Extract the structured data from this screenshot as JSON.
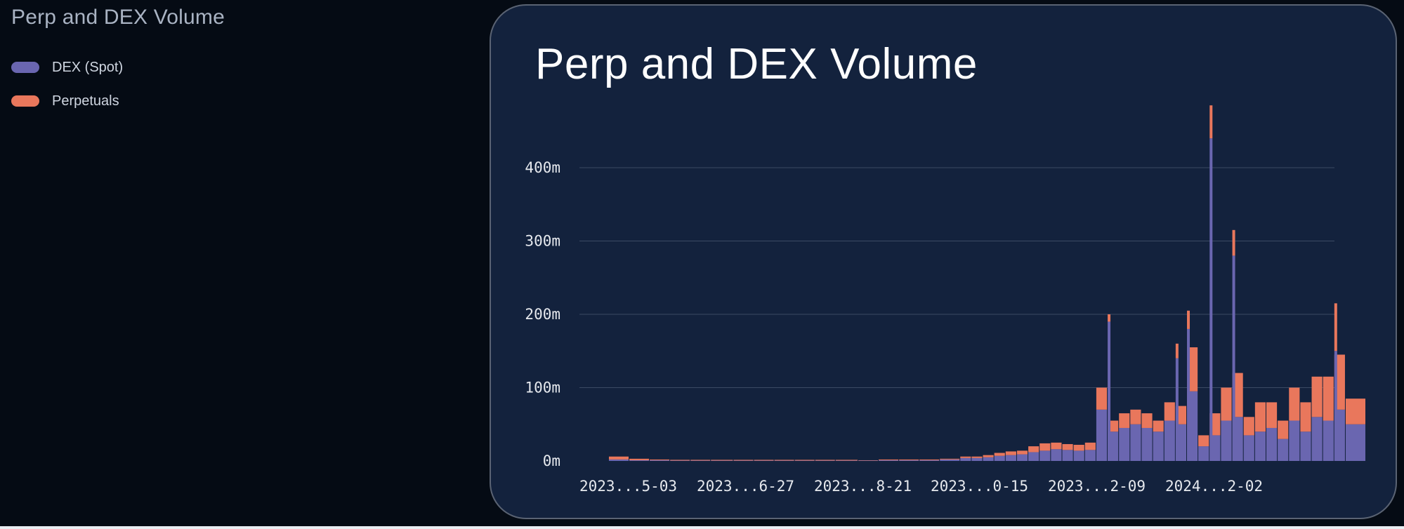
{
  "page": {
    "title": "Perp and DEX Volume"
  },
  "legend": {
    "items": [
      {
        "label": "DEX (Spot)",
        "color": "#6a66b0"
      },
      {
        "label": "Perpetuals",
        "color": "#e9775c"
      }
    ]
  },
  "chart_data": {
    "type": "bar",
    "stacked": true,
    "title": "Perp and DEX Volume",
    "xlabel": "",
    "ylabel": "",
    "ylim": [
      0,
      400000000
    ],
    "y_ticks": [
      {
        "value": 0,
        "label": "0m"
      },
      {
        "value": 100000000,
        "label": "100m"
      },
      {
        "value": 200000000,
        "label": "200m"
      },
      {
        "value": 300000000,
        "label": "300m"
      },
      {
        "value": 400000000,
        "label": "400m"
      }
    ],
    "x_tick_labels": [
      "2023...5-03",
      "2023...6-27",
      "2023...8-21",
      "2023...0-15",
      "2023...2-09",
      "2024...2-02"
    ],
    "grid": true,
    "legend_position": "outside-left",
    "colors": {
      "DEX (Spot)": "#6a66b0",
      "Perpetuals": "#e9775c"
    },
    "x": [
      "2023-05-03",
      "2023-05-12",
      "2023-05-21",
      "2023-05-30",
      "2023-06-08",
      "2023-06-17",
      "2023-06-27",
      "2023-07-06",
      "2023-07-15",
      "2023-07-24",
      "2023-08-02",
      "2023-08-11",
      "2023-08-21",
      "2023-08-30",
      "2023-09-08",
      "2023-09-17",
      "2023-09-26",
      "2023-10-05",
      "2023-10-10",
      "2023-10-15",
      "2023-10-20",
      "2023-10-25",
      "2023-10-30",
      "2023-11-04",
      "2023-11-09",
      "2023-11-14",
      "2023-11-19",
      "2023-11-24",
      "2023-11-29",
      "2023-12-04",
      "2023-12-09",
      "2023-12-14",
      "2023-12-19",
      "2023-12-24",
      "2023-12-29",
      "2024-01-03",
      "2024-01-08",
      "2024-01-13",
      "2024-01-18",
      "2024-01-23",
      "2024-01-28",
      "2024-02-02",
      "2024-02-07",
      "2024-02-12",
      "2024-02-17",
      "2024-02-22",
      "2024-02-27",
      "2024-03-03",
      "2024-03-08",
      "2024-03-13",
      "2024-03-18",
      "2024-03-23"
    ],
    "series": [
      {
        "name": "DEX (Spot)",
        "values": [
          2000000,
          1000000,
          1000000,
          500000,
          500000,
          500000,
          500000,
          500000,
          500000,
          500000,
          500000,
          500000,
          500000,
          1000000,
          1000000,
          1000000,
          2000000,
          4000000,
          4000000,
          5000000,
          7000000,
          8000000,
          9000000,
          12000000,
          14000000,
          16000000,
          15000000,
          14000000,
          15000000,
          70000000,
          40000000,
          45000000,
          50000000,
          45000000,
          40000000,
          55000000,
          50000000,
          95000000,
          20000000,
          35000000,
          55000000,
          60000000,
          35000000,
          40000000,
          45000000,
          30000000,
          55000000,
          40000000,
          60000000,
          55000000,
          70000000,
          50000000
        ]
      },
      {
        "name": "Perpetuals",
        "values": [
          4000000,
          2000000,
          1000000,
          1000000,
          1000000,
          1000000,
          1000000,
          1000000,
          1000000,
          1000000,
          1000000,
          1000000,
          500000,
          1000000,
          1000000,
          1000000,
          1000000,
          2000000,
          2000000,
          3000000,
          4000000,
          5000000,
          5000000,
          8000000,
          10000000,
          9000000,
          8000000,
          8000000,
          10000000,
          30000000,
          15000000,
          20000000,
          20000000,
          20000000,
          15000000,
          25000000,
          25000000,
          60000000,
          15000000,
          30000000,
          45000000,
          60000000,
          25000000,
          40000000,
          35000000,
          25000000,
          45000000,
          40000000,
          55000000,
          60000000,
          75000000,
          35000000
        ]
      }
    ],
    "spikes": [
      {
        "x": "2023-12-09",
        "dex": 190000000,
        "perp": 10000000
      },
      {
        "x": "2024-01-08",
        "dex": 140000000,
        "perp": 20000000
      },
      {
        "x": "2024-01-13",
        "dex": 180000000,
        "perp": 25000000
      },
      {
        "x": "2024-01-23",
        "dex": 440000000,
        "perp": 45000000
      },
      {
        "x": "2024-02-02",
        "dex": 280000000,
        "perp": 35000000
      },
      {
        "x": "2024-03-18",
        "dex": 150000000,
        "perp": 65000000
      }
    ]
  }
}
